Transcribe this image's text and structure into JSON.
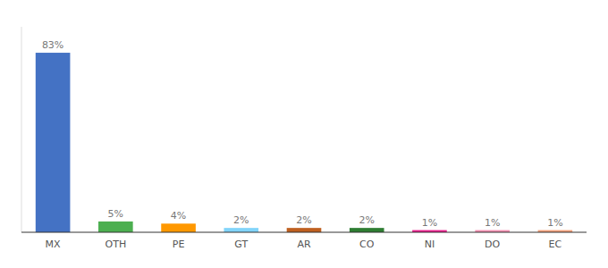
{
  "chart_data": {
    "type": "bar",
    "categories": [
      "MX",
      "OTH",
      "PE",
      "GT",
      "AR",
      "CO",
      "NI",
      "DO",
      "EC"
    ],
    "values": [
      83,
      5,
      4,
      2,
      2,
      2,
      1,
      1,
      1
    ],
    "value_labels": [
      "83%",
      "5%",
      "4%",
      "2%",
      "2%",
      "2%",
      "1%",
      "1%",
      "1%"
    ],
    "colors": [
      "#4472c4",
      "#4caf50",
      "#ff9800",
      "#81d4fa",
      "#bf6020",
      "#2e7d32",
      "#e91e8c",
      "#f48fb1",
      "#f4a07a"
    ],
    "ylim": [
      0,
      95
    ],
    "data_labels": true,
    "tick_labels": "x",
    "grid": false
  }
}
